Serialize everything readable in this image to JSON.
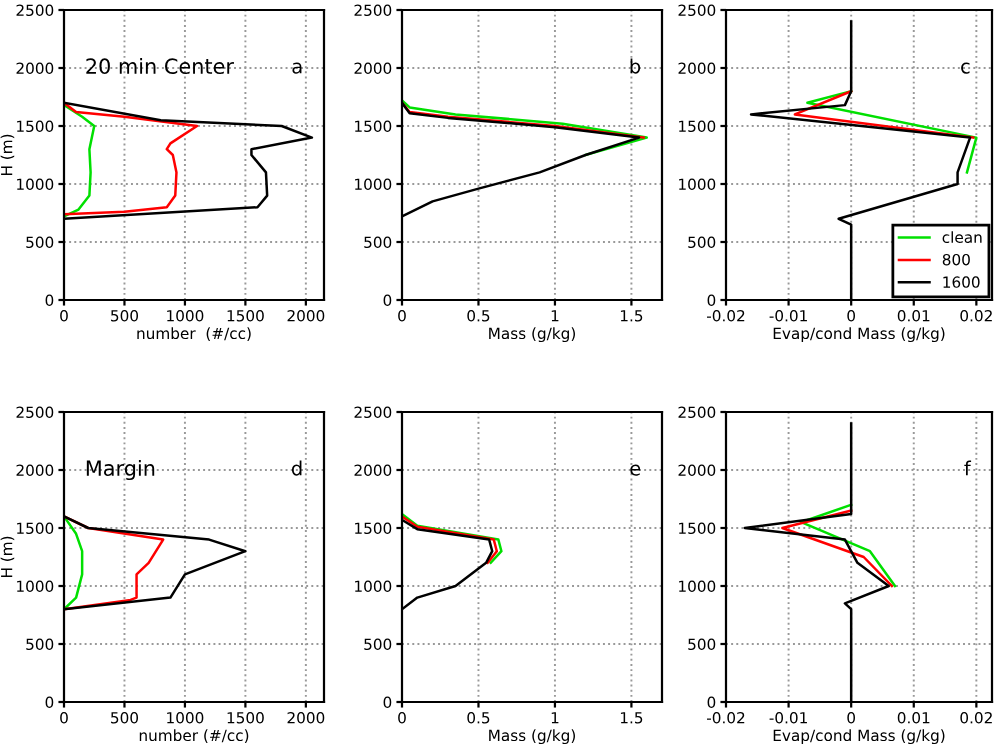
{
  "chart_data": [
    {
      "type": "line",
      "xlabel": "number  (#/cc)",
      "ylabel": "H (m)",
      "annotations": [
        "20 min Center",
        "a"
      ],
      "xlim": [
        0,
        2150
      ],
      "xticks": [
        0,
        500,
        1000,
        1500,
        2000
      ],
      "ylim": [
        0,
        2500
      ],
      "yticks": [
        0,
        500,
        1000,
        1500,
        2000,
        2500
      ],
      "grid": true,
      "series": [
        {
          "color": "#00e000",
          "x": [
            0,
            120,
            210,
            220,
            210,
            250,
            150,
            0
          ],
          "values": [
            720,
            780,
            900,
            1100,
            1300,
            1500,
            1580,
            1680
          ]
        },
        {
          "color": "#ff0000",
          "x": [
            0,
            500,
            850,
            920,
            930,
            900,
            850,
            880,
            1100,
            500,
            100,
            0
          ],
          "values": [
            740,
            760,
            800,
            900,
            1100,
            1250,
            1300,
            1350,
            1500,
            1580,
            1620,
            1700
          ]
        },
        {
          "color": "#000000",
          "x": [
            0,
            1600,
            1680,
            1670,
            1550,
            1550,
            2050,
            1800,
            800,
            0
          ],
          "values": [
            700,
            800,
            900,
            1100,
            1250,
            1300,
            1400,
            1500,
            1550,
            1700
          ]
        }
      ]
    },
    {
      "type": "line",
      "xlabel": "Mass (g/kg)",
      "annotations": [
        "b"
      ],
      "xlim": [
        0,
        1.7
      ],
      "xticks": [
        0,
        0.5,
        1,
        1.5
      ],
      "ylim": [
        0,
        2500
      ],
      "yticks": [
        0,
        500,
        1000,
        1500,
        2000,
        2500
      ],
      "grid": true,
      "series": [
        {
          "color": "#00e000",
          "x": [
            1.2,
            1.6,
            1.05,
            0.35,
            0.05,
            0
          ],
          "values": [
            1250,
            1400,
            1520,
            1600,
            1660,
            1720
          ]
        },
        {
          "color": "#ff0000",
          "x": [
            1.58,
            1.0,
            0.3,
            0.05,
            0
          ],
          "values": [
            1400,
            1500,
            1580,
            1620,
            1700
          ]
        },
        {
          "color": "#000000",
          "x": [
            0,
            0.2,
            0.5,
            0.9,
            1.2,
            1.55,
            1.0,
            0.3,
            0.05,
            0
          ],
          "values": [
            720,
            850,
            960,
            1100,
            1250,
            1400,
            1490,
            1570,
            1610,
            1700
          ]
        }
      ]
    },
    {
      "type": "line",
      "xlabel": "Evap/cond Mass (g/kg)",
      "annotations": [
        "c"
      ],
      "xlim": [
        -0.02,
        0.0225
      ],
      "xticks": [
        -0.02,
        -0.01,
        0,
        0.01,
        0.02
      ],
      "ylim": [
        0,
        2500
      ],
      "yticks": [
        0,
        500,
        1000,
        1500,
        2000,
        2500
      ],
      "grid": true,
      "legend": "bottom right",
      "series": [
        {
          "name": "clean",
          "color": "#00e000",
          "x": [
            0.0185,
            0.02,
            -0.007,
            0
          ],
          "values": [
            1100,
            1400,
            1700,
            1800
          ]
        },
        {
          "name": "800",
          "color": "#ff0000",
          "x": [
            0.0195,
            -0.009,
            0
          ],
          "values": [
            1400,
            1600,
            1800
          ]
        },
        {
          "name": "1600",
          "color": "#000000",
          "x": [
            0,
            0,
            -0.002,
            0.017,
            0.017,
            0.019,
            -0.016,
            -0.001,
            0,
            0
          ],
          "values": [
            0,
            650,
            700,
            1000,
            1100,
            1400,
            1600,
            1680,
            1800,
            2400
          ]
        }
      ]
    },
    {
      "type": "line",
      "xlabel": "number (#/cc)",
      "ylabel": "H (m)",
      "annotations": [
        "Margin",
        "d"
      ],
      "xlim": [
        0,
        2150
      ],
      "xticks": [
        0,
        500,
        1000,
        1500,
        2000
      ],
      "ylim": [
        0,
        2500
      ],
      "yticks": [
        0,
        500,
        1000,
        1500,
        2000,
        2500
      ],
      "grid": true,
      "series": [
        {
          "color": "#00e000",
          "x": [
            0,
            100,
            150,
            150,
            100,
            0
          ],
          "values": [
            800,
            900,
            1100,
            1300,
            1450,
            1600
          ]
        },
        {
          "color": "#ff0000",
          "x": [
            0,
            550,
            600,
            600,
            700,
            820,
            200,
            0
          ],
          "values": [
            800,
            880,
            900,
            1100,
            1200,
            1400,
            1500,
            1600
          ]
        },
        {
          "color": "#000000",
          "x": [
            0,
            880,
            1000,
            1500,
            1200,
            200,
            0
          ],
          "values": [
            800,
            900,
            1100,
            1300,
            1400,
            1500,
            1600
          ]
        }
      ]
    },
    {
      "type": "line",
      "xlabel": "Mass (g/kg)",
      "annotations": [
        "e"
      ],
      "xlim": [
        0,
        1.7
      ],
      "xticks": [
        0,
        0.5,
        1,
        1.5
      ],
      "ylim": [
        0,
        2500
      ],
      "yticks": [
        0,
        500,
        1000,
        1500,
        2000,
        2500
      ],
      "grid": true,
      "series": [
        {
          "color": "#00e000",
          "x": [
            0.58,
            0.65,
            0.63,
            0.1,
            0
          ],
          "values": [
            1200,
            1300,
            1400,
            1520,
            1620
          ]
        },
        {
          "color": "#ff0000",
          "x": [
            0.56,
            0.62,
            0.6,
            0.1,
            0
          ],
          "values": [
            1200,
            1300,
            1400,
            1510,
            1600
          ]
        },
        {
          "color": "#000000",
          "x": [
            0,
            0.1,
            0.35,
            0.55,
            0.59,
            0.57,
            0.1,
            0
          ],
          "values": [
            800,
            900,
            1000,
            1200,
            1300,
            1400,
            1490,
            1570
          ]
        }
      ]
    },
    {
      "type": "line",
      "xlabel": "Evap/cond Mass (g/kg)",
      "annotations": [
        "f"
      ],
      "xlim": [
        -0.02,
        0.0225
      ],
      "xticks": [
        -0.02,
        -0.01,
        0,
        0.01,
        0.02
      ],
      "ylim": [
        0,
        2500
      ],
      "yticks": [
        0,
        500,
        1000,
        1500,
        2000,
        2500
      ],
      "grid": true,
      "series": [
        {
          "color": "#00e000",
          "x": [
            0.007,
            0.003,
            -0.008,
            0
          ],
          "values": [
            1000,
            1300,
            1550,
            1700
          ]
        },
        {
          "color": "#ff0000",
          "x": [
            0.0065,
            0.002,
            -0.011,
            0
          ],
          "values": [
            1000,
            1250,
            1500,
            1650
          ]
        },
        {
          "color": "#000000",
          "x": [
            0,
            0,
            -0.001,
            0.006,
            0.001,
            -0.001,
            -0.017,
            0,
            0
          ],
          "values": [
            0,
            800,
            850,
            1000,
            1200,
            1400,
            1500,
            1620,
            2400
          ]
        }
      ]
    }
  ]
}
